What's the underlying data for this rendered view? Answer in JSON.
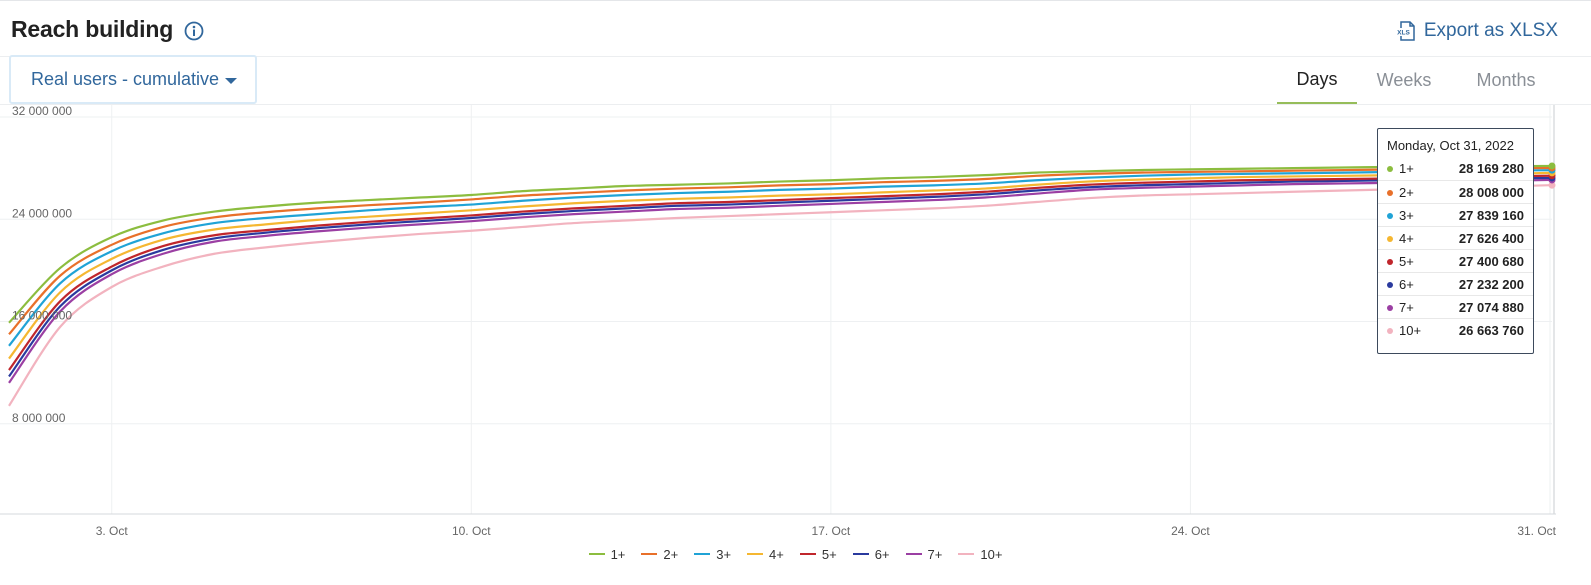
{
  "header": {
    "title": "Reach building",
    "export_label": "Export as XLSX",
    "export_icon": "xls-file-icon",
    "info_icon": "info-circle-icon"
  },
  "controls": {
    "dropdown_label": "Real users - cumulative",
    "tabs": [
      {
        "label": "Days",
        "active": true
      },
      {
        "label": "Weeks",
        "active": false
      },
      {
        "label": "Months",
        "active": false
      }
    ]
  },
  "colors": {
    "accent": "#31679c",
    "tab_active_underline": "#96bd5a"
  },
  "chart_data": {
    "type": "line",
    "x_start": "1. Oct",
    "x_end": "31. Oct",
    "x_tick_labels": [
      "3. Oct",
      "10. Oct",
      "17. Oct",
      "24. Oct",
      "31. Oct"
    ],
    "x_tick_days": [
      3,
      10,
      17,
      24,
      31
    ],
    "ylim": [
      0,
      32000000
    ],
    "y_tick_values": [
      8000000,
      16000000,
      24000000,
      32000000
    ],
    "y_tick_labels": [
      "8 000 000",
      "16 000 000",
      "24 000 000",
      "32 000 000"
    ],
    "grid": true,
    "legend_position": "bottom",
    "x_days": [
      1,
      2,
      3,
      4,
      5,
      6,
      7,
      8,
      9,
      10,
      11,
      12,
      13,
      14,
      15,
      16,
      17,
      18,
      19,
      20,
      21,
      22,
      23,
      24,
      25,
      26,
      27,
      28,
      29,
      30,
      31
    ],
    "series": [
      {
        "name": "1+",
        "color": "#8cbd3f",
        "values": [
          15900000,
          20200000,
          22600000,
          23900000,
          24600000,
          25000000,
          25300000,
          25500000,
          25700000,
          25900000,
          26200000,
          26400000,
          26600000,
          26700000,
          26800000,
          26950000,
          27050000,
          27200000,
          27300000,
          27450000,
          27650000,
          27750000,
          27850000,
          27900000,
          27950000,
          28000000,
          28050000,
          28100000,
          28120000,
          28150000,
          28169280
        ]
      },
      {
        "name": "2+",
        "color": "#e8702a",
        "values": [
          15000000,
          19600000,
          22000000,
          23400000,
          24150000,
          24550000,
          24850000,
          25100000,
          25300000,
          25550000,
          25850000,
          26050000,
          26250000,
          26400000,
          26500000,
          26650000,
          26750000,
          26900000,
          27000000,
          27150000,
          27400000,
          27550000,
          27650000,
          27700000,
          27750000,
          27800000,
          27850000,
          27900000,
          27950000,
          27980000,
          28008000
        ]
      },
      {
        "name": "3+",
        "color": "#20a3d6",
        "values": [
          14100000,
          19000000,
          21500000,
          22900000,
          23700000,
          24100000,
          24400000,
          24700000,
          24950000,
          25150000,
          25450000,
          25700000,
          25900000,
          26050000,
          26150000,
          26300000,
          26400000,
          26550000,
          26650000,
          26800000,
          27050000,
          27250000,
          27400000,
          27500000,
          27550000,
          27600000,
          27650000,
          27700000,
          27750000,
          27800000,
          27839160
        ]
      },
      {
        "name": "4+",
        "color": "#f5b731",
        "values": [
          13100000,
          18300000,
          20900000,
          22400000,
          23200000,
          23600000,
          23950000,
          24200000,
          24450000,
          24700000,
          25000000,
          25250000,
          25450000,
          25600000,
          25700000,
          25850000,
          25950000,
          26100000,
          26250000,
          26400000,
          26700000,
          26950000,
          27100000,
          27200000,
          27300000,
          27350000,
          27400000,
          27450000,
          27500000,
          27550000,
          27626400
        ]
      },
      {
        "name": "5+",
        "color": "#c0262c",
        "values": [
          12200000,
          17600000,
          20300000,
          21900000,
          22750000,
          23150000,
          23500000,
          23800000,
          24050000,
          24300000,
          24600000,
          24850000,
          25050000,
          25250000,
          25350000,
          25500000,
          25650000,
          25800000,
          25950000,
          26150000,
          26450000,
          26700000,
          26850000,
          26950000,
          27050000,
          27100000,
          27150000,
          27200000,
          27250000,
          27350000,
          27400680
        ]
      },
      {
        "name": "6+",
        "color": "#2a3a9e",
        "values": [
          11700000,
          17200000,
          20000000,
          21600000,
          22500000,
          22950000,
          23300000,
          23600000,
          23850000,
          24100000,
          24400000,
          24650000,
          24850000,
          25050000,
          25150000,
          25300000,
          25450000,
          25600000,
          25750000,
          25950000,
          26250000,
          26500000,
          26650000,
          26750000,
          26850000,
          26950000,
          27000000,
          27050000,
          27100000,
          27180000,
          27232200
        ]
      },
      {
        "name": "7+",
        "color": "#9b3fa3",
        "values": [
          11200000,
          16800000,
          19700000,
          21300000,
          22250000,
          22700000,
          23050000,
          23350000,
          23600000,
          23850000,
          24150000,
          24400000,
          24600000,
          24800000,
          24900000,
          25050000,
          25200000,
          25350000,
          25500000,
          25700000,
          26000000,
          26300000,
          26450000,
          26550000,
          26650000,
          26750000,
          26800000,
          26850000,
          26900000,
          27000000,
          27074880
        ]
      },
      {
        "name": "10+",
        "color": "#f2b3bf",
        "values": [
          9400000,
          15600000,
          18700000,
          20300000,
          21300000,
          21800000,
          22200000,
          22550000,
          22850000,
          23100000,
          23400000,
          23700000,
          23900000,
          24100000,
          24250000,
          24400000,
          24550000,
          24700000,
          24850000,
          25050000,
          25350000,
          25650000,
          25850000,
          25950000,
          26050000,
          26150000,
          26250000,
          26350000,
          26450000,
          26550000,
          26663760
        ]
      }
    ],
    "tooltip": {
      "header": "Monday, Oct 31, 2022",
      "rows": [
        {
          "name": "1+",
          "value": "28 169 280"
        },
        {
          "name": "2+",
          "value": "28 008 000"
        },
        {
          "name": "3+",
          "value": "27 839 160"
        },
        {
          "name": "4+",
          "value": "27 626 400"
        },
        {
          "name": "5+",
          "value": "27 400 680"
        },
        {
          "name": "6+",
          "value": "27 232 200"
        },
        {
          "name": "7+",
          "value": "27 074 880"
        },
        {
          "name": "10+",
          "value": "26 663 760"
        }
      ]
    }
  }
}
